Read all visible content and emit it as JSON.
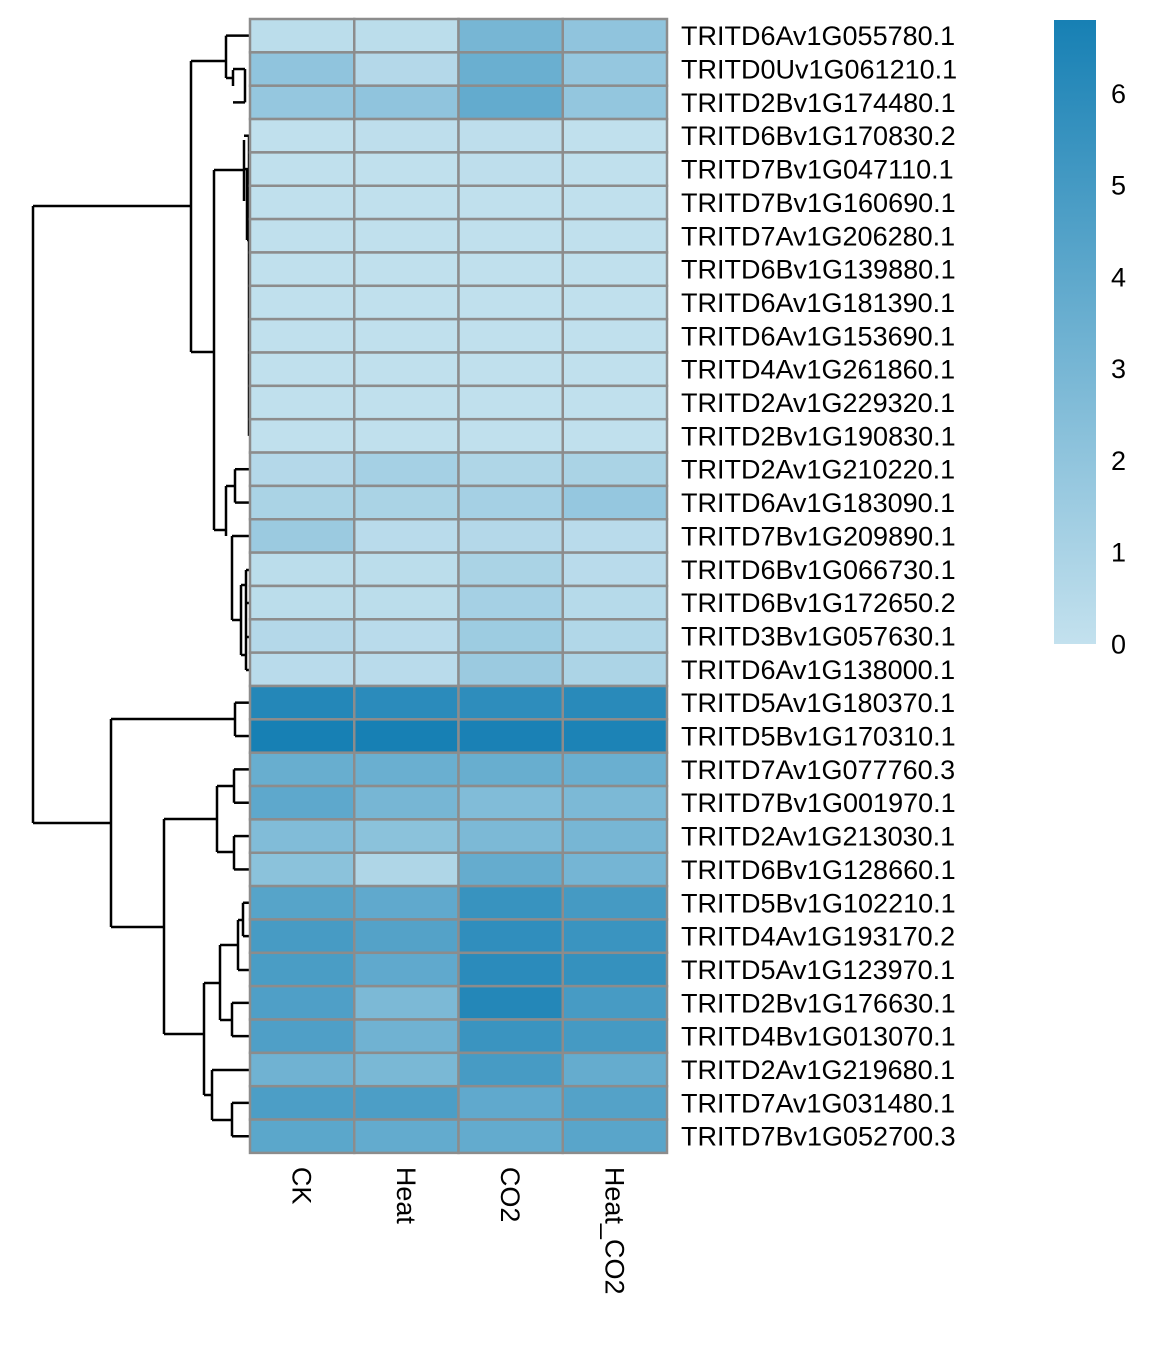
{
  "chart_data": {
    "type": "heatmap",
    "title": "",
    "columns": [
      "CK",
      "Heat",
      "CO2",
      "Heat_CO2"
    ],
    "rows": [
      "TRITD6Av1G055780.1",
      "TRITD0Uv1G061210.1",
      "TRITD2Bv1G174480.1",
      "TRITD6Bv1G170830.2",
      "TRITD7Bv1G047110.1",
      "TRITD7Bv1G160690.1",
      "TRITD7Av1G206280.1",
      "TRITD6Bv1G139880.1",
      "TRITD6Av1G181390.1",
      "TRITD6Av1G153690.1",
      "TRITD4Av1G261860.1",
      "TRITD2Av1G229320.1",
      "TRITD2Bv1G190830.1",
      "TRITD2Av1G210220.1",
      "TRITD6Av1G183090.1",
      "TRITD7Bv1G209890.1",
      "TRITD6Bv1G066730.1",
      "TRITD6Bv1G172650.2",
      "TRITD3Bv1G057630.1",
      "TRITD6Av1G138000.1",
      "TRITD5Av1G180370.1",
      "TRITD5Bv1G170310.1",
      "TRITD7Av1G077760.3",
      "TRITD7Bv1G001970.1",
      "TRITD2Av1G213030.1",
      "TRITD6Bv1G128660.1",
      "TRITD5Bv1G102210.1",
      "TRITD4Av1G193170.2",
      "TRITD5Av1G123970.1",
      "TRITD2Bv1G176630.1",
      "TRITD4Bv1G013070.1",
      "TRITD2Av1G219680.1",
      "TRITD7Av1G031480.1",
      "TRITD7Bv1G052700.3"
    ],
    "values": [
      [
        0.3,
        0.3,
        3.0,
        2.0
      ],
      [
        2.0,
        0.6,
        3.5,
        1.8
      ],
      [
        1.8,
        2.0,
        3.8,
        1.9
      ],
      [
        0.1,
        0.2,
        0.2,
        0.1
      ],
      [
        0.1,
        0.1,
        0.2,
        0.1
      ],
      [
        0.1,
        0.1,
        0.1,
        0.1
      ],
      [
        0.1,
        0.1,
        0.1,
        0.1
      ],
      [
        0.1,
        0.1,
        0.1,
        0.1
      ],
      [
        0.1,
        0.1,
        0.1,
        0.1
      ],
      [
        0.1,
        0.1,
        0.1,
        0.1
      ],
      [
        0.1,
        0.1,
        0.1,
        0.1
      ],
      [
        0.1,
        0.1,
        0.1,
        0.1
      ],
      [
        0.1,
        0.1,
        0.1,
        0.1
      ],
      [
        0.6,
        1.2,
        0.8,
        1.0
      ],
      [
        1.0,
        1.0,
        1.2,
        1.8
      ],
      [
        1.6,
        0.4,
        0.6,
        0.4
      ],
      [
        0.3,
        0.3,
        1.0,
        0.4
      ],
      [
        0.3,
        0.3,
        1.2,
        0.5
      ],
      [
        0.6,
        0.4,
        1.5,
        0.7
      ],
      [
        0.4,
        0.4,
        1.6,
        0.9
      ],
      [
        6.3,
        6.0,
        5.9,
        6.1
      ],
      [
        6.8,
        6.9,
        6.7,
        6.6
      ],
      [
        3.6,
        3.5,
        3.6,
        3.5
      ],
      [
        4.0,
        3.0,
        2.6,
        2.8
      ],
      [
        2.6,
        2.2,
        2.8,
        3.0
      ],
      [
        2.2,
        0.8,
        3.7,
        3.1
      ],
      [
        4.3,
        3.9,
        5.5,
        5.0
      ],
      [
        4.9,
        4.4,
        5.8,
        5.4
      ],
      [
        4.8,
        3.9,
        6.0,
        5.6
      ],
      [
        4.6,
        2.8,
        6.3,
        4.9
      ],
      [
        4.6,
        3.3,
        5.4,
        5.0
      ],
      [
        3.3,
        2.9,
        4.9,
        3.7
      ],
      [
        4.7,
        4.7,
        3.9,
        4.4
      ],
      [
        4.1,
        3.8,
        3.8,
        4.2
      ]
    ],
    "legend": {
      "ticks": [
        "6",
        "5",
        "4",
        "3",
        "2",
        "1",
        "0"
      ],
      "range": [
        0,
        6.8
      ],
      "color_low": "#c3e1ee",
      "color_high": "#1780b4",
      "placement": "right"
    },
    "dendrogram": "rows"
  }
}
